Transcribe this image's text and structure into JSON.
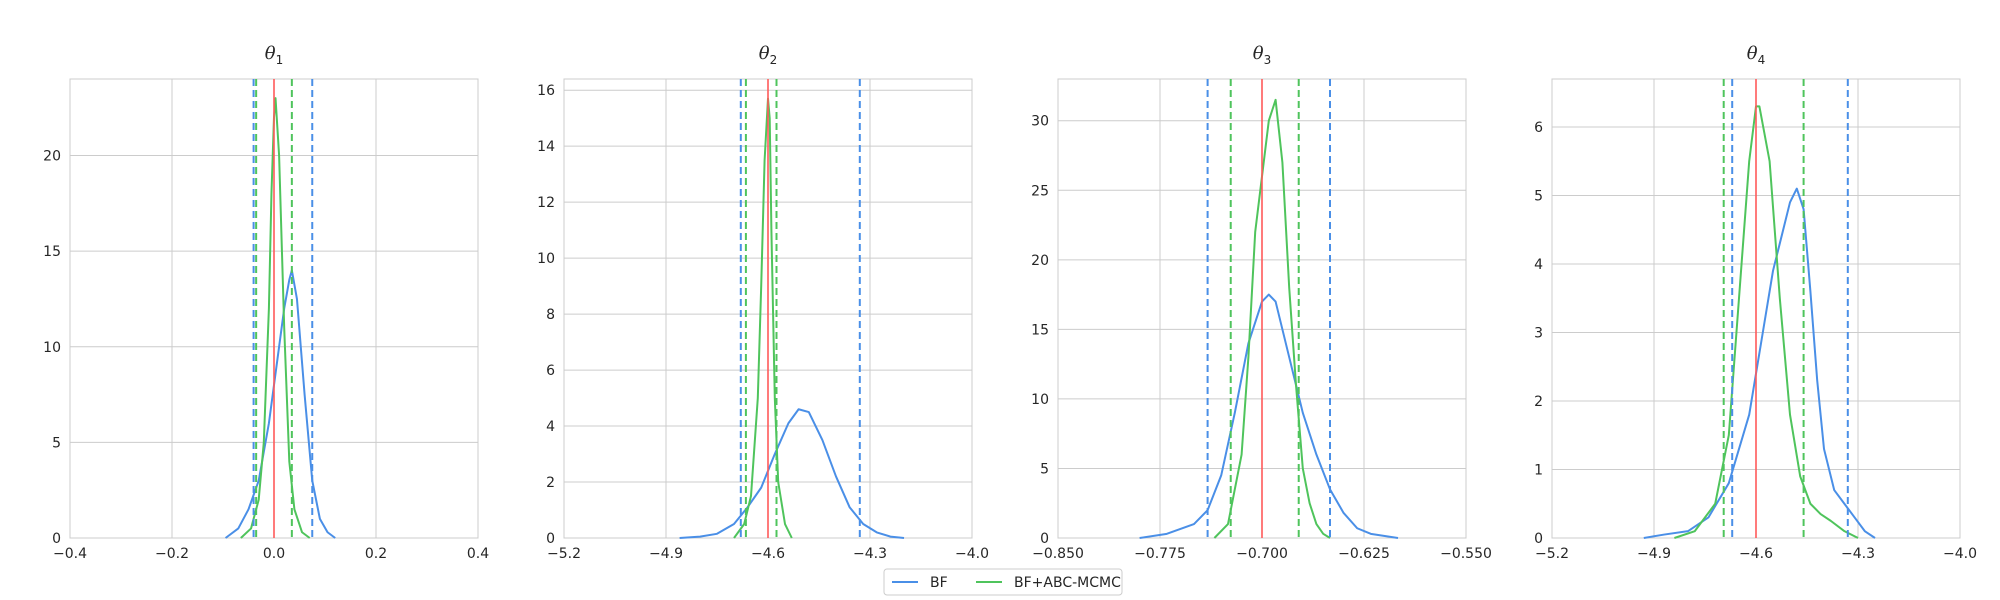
{
  "chart_data": [
    {
      "type": "line",
      "title": "θ1",
      "title_symbol": "θ",
      "title_subscript": "1",
      "xlim": [
        -0.4,
        0.4
      ],
      "ylim": [
        0,
        24
      ],
      "xticks": [
        -0.4,
        -0.2,
        0.0,
        0.2,
        0.4
      ],
      "xtick_labels": [
        "−0.4",
        "−0.2",
        "0.0",
        "0.2",
        "0.4"
      ],
      "yticks": [
        0,
        5,
        10,
        15,
        20
      ],
      "ytick_labels": [
        "0",
        "5",
        "10",
        "15",
        "20"
      ],
      "true_value": 0.0,
      "grid": true,
      "series": [
        {
          "name": "BF",
          "color": "#4a8fe7",
          "x": [
            -0.095,
            -0.07,
            -0.05,
            -0.03,
            -0.01,
            0.0,
            0.01,
            0.02,
            0.03,
            0.035,
            0.045,
            0.06,
            0.075,
            0.09,
            0.105,
            0.12
          ],
          "y": [
            0,
            0.5,
            1.5,
            3.0,
            6.0,
            8.0,
            10.0,
            12.0,
            13.5,
            14.0,
            12.5,
            7.5,
            3.0,
            1.0,
            0.3,
            0
          ],
          "ci": [
            -0.04,
            0.075
          ]
        },
        {
          "name": "BF+ABC-MCMC",
          "color": "#4fc45c",
          "x": [
            -0.065,
            -0.045,
            -0.03,
            -0.02,
            -0.01,
            -0.005,
            0.0,
            0.003,
            0.01,
            0.02,
            0.03,
            0.04,
            0.055,
            0.07
          ],
          "y": [
            0,
            0.5,
            2.0,
            5.0,
            12.0,
            18.0,
            22.0,
            23.0,
            20.0,
            11.0,
            4.0,
            1.5,
            0.3,
            0
          ],
          "ci": [
            -0.035,
            0.035
          ]
        }
      ]
    },
    {
      "type": "line",
      "title": "θ2",
      "title_symbol": "θ",
      "title_subscript": "2",
      "xlim": [
        -5.2,
        -4.0
      ],
      "ylim": [
        0,
        16.4
      ],
      "xticks": [
        -5.2,
        -4.9,
        -4.6,
        -4.3,
        -4.0
      ],
      "xtick_labels": [
        "−5.2",
        "−4.9",
        "−4.6",
        "−4.3",
        "−4.0"
      ],
      "yticks": [
        0,
        2,
        4,
        6,
        8,
        10,
        12,
        14,
        16
      ],
      "ytick_labels": [
        "0",
        "2",
        "4",
        "6",
        "8",
        "10",
        "12",
        "14",
        "16"
      ],
      "true_value": -4.6,
      "grid": true,
      "series": [
        {
          "name": "BF",
          "color": "#4a8fe7",
          "x": [
            -4.86,
            -4.8,
            -4.75,
            -4.7,
            -4.66,
            -4.62,
            -4.58,
            -4.54,
            -4.51,
            -4.48,
            -4.44,
            -4.4,
            -4.36,
            -4.32,
            -4.28,
            -4.24,
            -4.2
          ],
          "y": [
            0,
            0.05,
            0.15,
            0.5,
            1.1,
            1.8,
            3.0,
            4.1,
            4.6,
            4.5,
            3.5,
            2.2,
            1.1,
            0.5,
            0.2,
            0.05,
            0
          ],
          "ci": [
            -4.68,
            -4.33
          ]
        },
        {
          "name": "BF+ABC-MCMC",
          "color": "#4fc45c",
          "x": [
            -4.7,
            -4.67,
            -4.65,
            -4.63,
            -4.62,
            -4.61,
            -4.6,
            -4.595,
            -4.59,
            -4.58,
            -4.57,
            -4.55,
            -4.53
          ],
          "y": [
            0,
            0.5,
            1.5,
            5.0,
            9.0,
            13.5,
            15.7,
            15.0,
            11.0,
            5.0,
            2.0,
            0.5,
            0
          ],
          "ci": [
            -4.665,
            -4.575
          ]
        }
      ]
    },
    {
      "type": "line",
      "title": "θ3",
      "title_symbol": "θ",
      "title_subscript": "3",
      "xlim": [
        -0.85,
        -0.55
      ],
      "ylim": [
        0,
        33
      ],
      "xticks": [
        -0.85,
        -0.775,
        -0.7,
        -0.625,
        -0.55
      ],
      "xtick_labels": [
        "−0.850",
        "−0.775",
        "−0.700",
        "−0.625",
        "−0.550"
      ],
      "yticks": [
        0,
        5,
        10,
        15,
        20,
        25,
        30
      ],
      "ytick_labels": [
        "0",
        "5",
        "10",
        "15",
        "20",
        "25",
        "30"
      ],
      "true_value": -0.7,
      "grid": true,
      "series": [
        {
          "name": "BF",
          "color": "#4a8fe7",
          "x": [
            -0.79,
            -0.77,
            -0.75,
            -0.74,
            -0.73,
            -0.72,
            -0.71,
            -0.7,
            -0.695,
            -0.69,
            -0.68,
            -0.67,
            -0.66,
            -0.65,
            -0.64,
            -0.63,
            -0.62,
            -0.6
          ],
          "y": [
            0,
            0.3,
            1.0,
            2.0,
            4.5,
            9.0,
            14.0,
            17.0,
            17.5,
            17.0,
            13.0,
            9.0,
            6.0,
            3.5,
            1.8,
            0.7,
            0.3,
            0
          ],
          "ci": [
            -0.74,
            -0.65
          ]
        },
        {
          "name": "BF+ABC-MCMC",
          "color": "#4fc45c",
          "x": [
            -0.735,
            -0.725,
            -0.715,
            -0.71,
            -0.705,
            -0.7,
            -0.695,
            -0.69,
            -0.685,
            -0.68,
            -0.675,
            -0.67,
            -0.665,
            -0.66,
            -0.655,
            -0.65
          ],
          "y": [
            0,
            1.0,
            6.0,
            13.0,
            22.0,
            26.0,
            30.0,
            31.5,
            27.0,
            18.0,
            11.0,
            5.0,
            2.5,
            1.0,
            0.3,
            0
          ],
          "ci": [
            -0.723,
            -0.673
          ]
        }
      ]
    },
    {
      "type": "line",
      "title": "θ4",
      "title_symbol": "θ",
      "title_subscript": "4",
      "xlim": [
        -5.2,
        -4.0
      ],
      "ylim": [
        0,
        6.7
      ],
      "xticks": [
        -5.2,
        -4.9,
        -4.6,
        -4.3,
        -4.0
      ],
      "xtick_labels": [
        "−5.2",
        "−4.9",
        "−4.6",
        "−4.3",
        "−4.0"
      ],
      "yticks": [
        0,
        1,
        2,
        3,
        4,
        5,
        6
      ],
      "ytick_labels": [
        "0",
        "1",
        "2",
        "3",
        "4",
        "5",
        "6"
      ],
      "true_value": -4.6,
      "grid": true,
      "series": [
        {
          "name": "BF",
          "color": "#4a8fe7",
          "x": [
            -4.93,
            -4.87,
            -4.8,
            -4.74,
            -4.68,
            -4.62,
            -4.58,
            -4.55,
            -4.52,
            -4.5,
            -4.48,
            -4.46,
            -4.44,
            -4.42,
            -4.4,
            -4.37,
            -4.34,
            -4.31,
            -4.28,
            -4.25
          ],
          "y": [
            0,
            0.05,
            0.1,
            0.3,
            0.8,
            1.8,
            3.0,
            3.9,
            4.5,
            4.9,
            5.1,
            4.8,
            3.6,
            2.3,
            1.3,
            0.7,
            0.5,
            0.3,
            0.1,
            0
          ],
          "ci": [
            -4.67,
            -4.33
          ]
        },
        {
          "name": "BF+ABC-MCMC",
          "color": "#4fc45c",
          "x": [
            -4.84,
            -4.78,
            -4.72,
            -4.68,
            -4.65,
            -4.62,
            -4.6,
            -4.59,
            -4.56,
            -4.53,
            -4.5,
            -4.47,
            -4.44,
            -4.41,
            -4.38,
            -4.34,
            -4.3
          ],
          "y": [
            0,
            0.1,
            0.5,
            1.5,
            3.5,
            5.5,
            6.3,
            6.3,
            5.5,
            3.5,
            1.8,
            0.9,
            0.5,
            0.35,
            0.25,
            0.1,
            0
          ],
          "ci": [
            -4.695,
            -4.46
          ]
        }
      ]
    }
  ],
  "legend": {
    "placement": "bottom-center",
    "items": [
      {
        "label": "BF",
        "color": "#4a8fe7"
      },
      {
        "label": "BF+ABC-MCMC",
        "color": "#4fc45c"
      }
    ]
  },
  "colors": {
    "true_value_line": "#ff5a5a",
    "grid": "#cccccc",
    "spine": "#cccccc"
  }
}
